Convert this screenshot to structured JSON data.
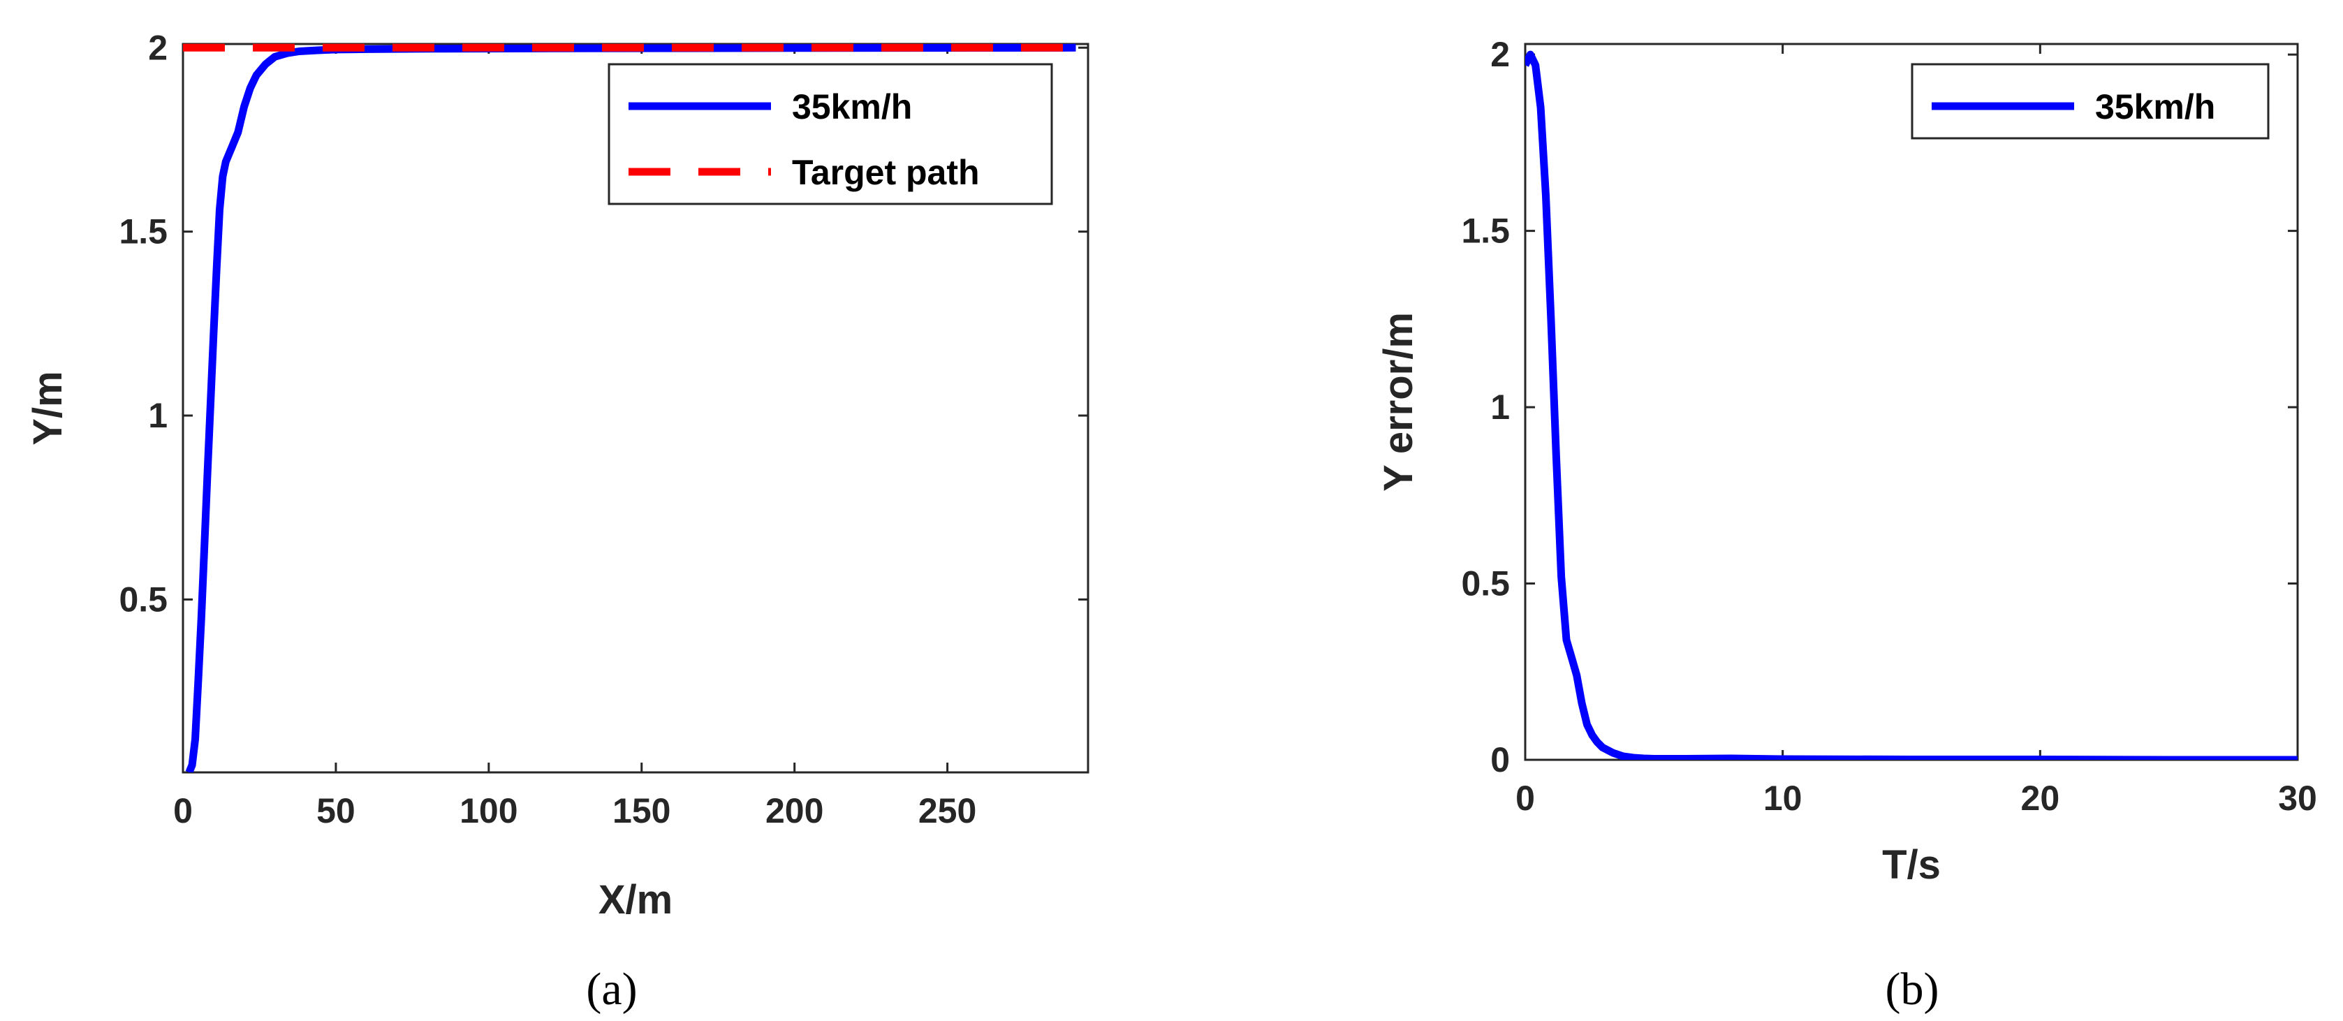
{
  "chart_data": [
    {
      "type": "line",
      "caption": "(a)",
      "xlabel": "X/m",
      "ylabel": "Y/m",
      "xlim": [
        0,
        296
      ],
      "ylim": [
        0.03,
        2.01
      ],
      "xticks": [
        0,
        50,
        100,
        150,
        200,
        250
      ],
      "yticks": [
        0.5,
        1,
        1.5,
        2
      ],
      "xtick_labels": [
        "0",
        "50",
        "100",
        "150",
        "200",
        "250"
      ],
      "ytick_labels": [
        "0.5",
        "1",
        "1.5",
        "2"
      ],
      "legend_position": "top-right",
      "series": [
        {
          "name": "35km/h",
          "color": "#0000ff",
          "style": "solid",
          "x": [
            2,
            3,
            4,
            5,
            6,
            7,
            8,
            9,
            10,
            11,
            12,
            13,
            14,
            15,
            16,
            18,
            20,
            22,
            24,
            27,
            30,
            34,
            38,
            44,
            50,
            60,
            80,
            120,
            200,
            292
          ],
          "y": [
            0.03,
            0.05,
            0.12,
            0.28,
            0.45,
            0.64,
            0.84,
            1.03,
            1.22,
            1.4,
            1.56,
            1.65,
            1.69,
            1.71,
            1.73,
            1.77,
            1.84,
            1.89,
            1.925,
            1.955,
            1.975,
            1.985,
            1.99,
            1.993,
            1.995,
            1.996,
            1.997,
            1.998,
            1.999,
            2.0
          ]
        },
        {
          "name": "Target path",
          "color": "#ff0000",
          "style": "dashed",
          "x": [
            0,
            292
          ],
          "y": [
            2.0,
            2.0
          ]
        }
      ]
    },
    {
      "type": "line",
      "caption": "(b)",
      "xlabel": "T/s",
      "ylabel": "Y error/m",
      "xlim": [
        0,
        30
      ],
      "ylim": [
        0,
        2.03
      ],
      "xticks": [
        0,
        10,
        20,
        30
      ],
      "yticks": [
        0,
        0.5,
        1,
        1.5,
        2
      ],
      "xtick_labels": [
        "0",
        "10",
        "20",
        "30"
      ],
      "ytick_labels": [
        "0",
        "0.5",
        "1",
        "1.5",
        "2"
      ],
      "legend_position": "top-right",
      "series": [
        {
          "name": "35km/h",
          "color": "#0000ff",
          "style": "solid",
          "x": [
            0,
            0.2,
            0.4,
            0.6,
            0.8,
            1.0,
            1.2,
            1.4,
            1.6,
            1.8,
            2.0,
            2.2,
            2.4,
            2.6,
            2.8,
            3.0,
            3.4,
            3.8,
            4.2,
            4.6,
            5,
            6,
            8,
            10,
            15,
            20,
            25,
            30
          ],
          "y": [
            1.97,
            2.0,
            1.97,
            1.85,
            1.6,
            1.25,
            0.87,
            0.52,
            0.34,
            0.29,
            0.24,
            0.16,
            0.1,
            0.07,
            0.05,
            0.035,
            0.02,
            0.01,
            0.006,
            0.004,
            0.003,
            0.003,
            0.004,
            0.002,
            0.001,
            0.001,
            0.0,
            0.0
          ]
        }
      ]
    }
  ]
}
